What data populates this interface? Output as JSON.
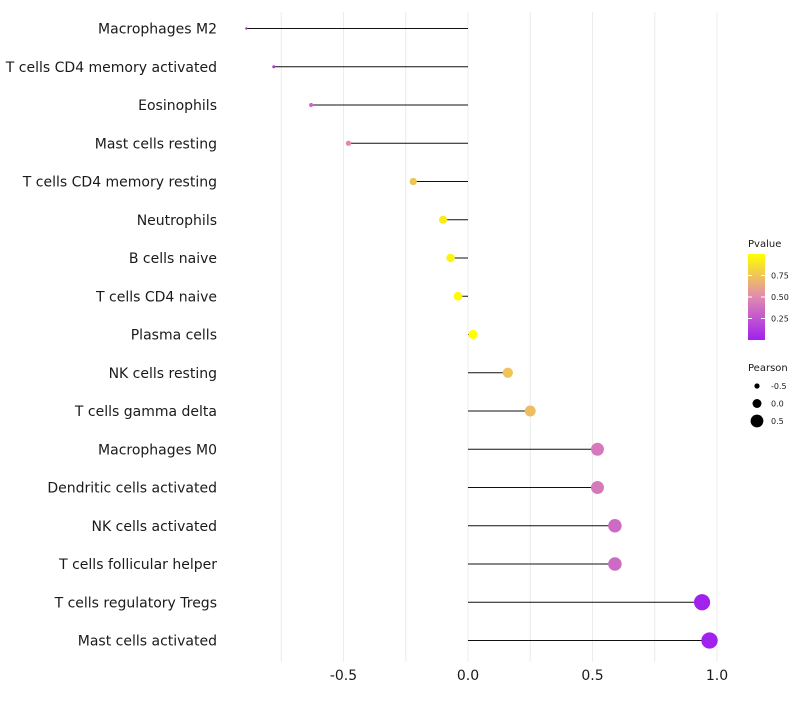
{
  "chart_data": {
    "type": "lollipop",
    "title": "",
    "xlabel": "",
    "ylabel": "",
    "xlim": [
      -0.95,
      1.05
    ],
    "xticks": [
      -0.5,
      0.0,
      0.5,
      1.0
    ],
    "xtick_labels": [
      "-0.5",
      "0.0",
      "0.5",
      "1.0"
    ],
    "categories": [
      "Macrophages M2",
      "T cells CD4 memory activated",
      "Eosinophils",
      "Mast cells resting",
      "T cells CD4 memory resting",
      "Neutrophils",
      "B cells naive",
      "T cells CD4 naive",
      "Plasma cells",
      "NK cells resting",
      "T cells gamma delta",
      "Macrophages M0",
      "Dendritic cells activated",
      "NK cells activated",
      "T cells follicular helper",
      "T cells regulatory  Tregs",
      "Mast cells activated"
    ],
    "pearson": [
      -0.89,
      -0.78,
      -0.63,
      -0.48,
      -0.22,
      -0.1,
      -0.07,
      -0.04,
      0.02,
      0.16,
      0.25,
      0.52,
      0.52,
      0.59,
      0.59,
      0.94,
      0.97
    ],
    "pvalue": [
      0.05,
      0.12,
      0.35,
      0.5,
      0.75,
      0.92,
      0.95,
      0.98,
      0.99,
      0.75,
      0.72,
      0.42,
      0.42,
      0.35,
      0.35,
      0.01,
      0.005
    ],
    "legend_color": {
      "title": "Pvalue",
      "ticks": [
        0.75,
        0.5,
        0.25
      ],
      "tick_labels": [
        "0.75",
        "0.50",
        "0.25"
      ],
      "low_color": "#a020f0",
      "high_color": "#ffff00"
    },
    "legend_size": {
      "title": "Pearson",
      "values": [
        -0.5,
        0.0,
        0.5
      ],
      "labels": [
        "-0.5",
        "0.0",
        "0.5"
      ]
    },
    "grid": "vertical",
    "background": "#ffffff"
  }
}
